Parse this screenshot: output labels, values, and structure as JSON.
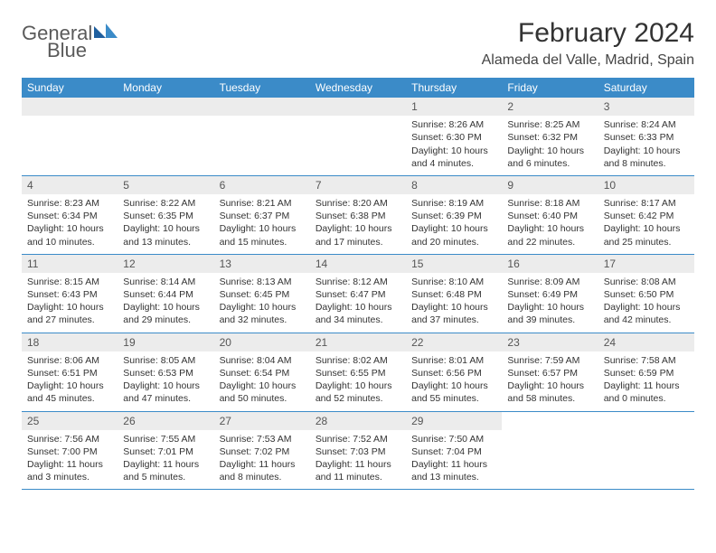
{
  "logo": {
    "text1": "General",
    "text2": "Blue"
  },
  "title": "February 2024",
  "location": "Alameda del Valle, Madrid, Spain",
  "colors": {
    "header_bg": "#3b8bc8",
    "header_text": "#ffffff",
    "daynum_bg": "#ececec",
    "border": "#3b8bc8",
    "logo_gray": "#5a5a5a",
    "logo_blue": "#2e7cc0",
    "text": "#333333"
  },
  "day_names": [
    "Sunday",
    "Monday",
    "Tuesday",
    "Wednesday",
    "Thursday",
    "Friday",
    "Saturday"
  ],
  "weeks": [
    [
      {
        "empty": true
      },
      {
        "empty": true
      },
      {
        "empty": true
      },
      {
        "empty": true
      },
      {
        "num": "1",
        "sunrise": "Sunrise: 8:26 AM",
        "sunset": "Sunset: 6:30 PM",
        "daylight": "Daylight: 10 hours and 4 minutes."
      },
      {
        "num": "2",
        "sunrise": "Sunrise: 8:25 AM",
        "sunset": "Sunset: 6:32 PM",
        "daylight": "Daylight: 10 hours and 6 minutes."
      },
      {
        "num": "3",
        "sunrise": "Sunrise: 8:24 AM",
        "sunset": "Sunset: 6:33 PM",
        "daylight": "Daylight: 10 hours and 8 minutes."
      }
    ],
    [
      {
        "num": "4",
        "sunrise": "Sunrise: 8:23 AM",
        "sunset": "Sunset: 6:34 PM",
        "daylight": "Daylight: 10 hours and 10 minutes."
      },
      {
        "num": "5",
        "sunrise": "Sunrise: 8:22 AM",
        "sunset": "Sunset: 6:35 PM",
        "daylight": "Daylight: 10 hours and 13 minutes."
      },
      {
        "num": "6",
        "sunrise": "Sunrise: 8:21 AM",
        "sunset": "Sunset: 6:37 PM",
        "daylight": "Daylight: 10 hours and 15 minutes."
      },
      {
        "num": "7",
        "sunrise": "Sunrise: 8:20 AM",
        "sunset": "Sunset: 6:38 PM",
        "daylight": "Daylight: 10 hours and 17 minutes."
      },
      {
        "num": "8",
        "sunrise": "Sunrise: 8:19 AM",
        "sunset": "Sunset: 6:39 PM",
        "daylight": "Daylight: 10 hours and 20 minutes."
      },
      {
        "num": "9",
        "sunrise": "Sunrise: 8:18 AM",
        "sunset": "Sunset: 6:40 PM",
        "daylight": "Daylight: 10 hours and 22 minutes."
      },
      {
        "num": "10",
        "sunrise": "Sunrise: 8:17 AM",
        "sunset": "Sunset: 6:42 PM",
        "daylight": "Daylight: 10 hours and 25 minutes."
      }
    ],
    [
      {
        "num": "11",
        "sunrise": "Sunrise: 8:15 AM",
        "sunset": "Sunset: 6:43 PM",
        "daylight": "Daylight: 10 hours and 27 minutes."
      },
      {
        "num": "12",
        "sunrise": "Sunrise: 8:14 AM",
        "sunset": "Sunset: 6:44 PM",
        "daylight": "Daylight: 10 hours and 29 minutes."
      },
      {
        "num": "13",
        "sunrise": "Sunrise: 8:13 AM",
        "sunset": "Sunset: 6:45 PM",
        "daylight": "Daylight: 10 hours and 32 minutes."
      },
      {
        "num": "14",
        "sunrise": "Sunrise: 8:12 AM",
        "sunset": "Sunset: 6:47 PM",
        "daylight": "Daylight: 10 hours and 34 minutes."
      },
      {
        "num": "15",
        "sunrise": "Sunrise: 8:10 AM",
        "sunset": "Sunset: 6:48 PM",
        "daylight": "Daylight: 10 hours and 37 minutes."
      },
      {
        "num": "16",
        "sunrise": "Sunrise: 8:09 AM",
        "sunset": "Sunset: 6:49 PM",
        "daylight": "Daylight: 10 hours and 39 minutes."
      },
      {
        "num": "17",
        "sunrise": "Sunrise: 8:08 AM",
        "sunset": "Sunset: 6:50 PM",
        "daylight": "Daylight: 10 hours and 42 minutes."
      }
    ],
    [
      {
        "num": "18",
        "sunrise": "Sunrise: 8:06 AM",
        "sunset": "Sunset: 6:51 PM",
        "daylight": "Daylight: 10 hours and 45 minutes."
      },
      {
        "num": "19",
        "sunrise": "Sunrise: 8:05 AM",
        "sunset": "Sunset: 6:53 PM",
        "daylight": "Daylight: 10 hours and 47 minutes."
      },
      {
        "num": "20",
        "sunrise": "Sunrise: 8:04 AM",
        "sunset": "Sunset: 6:54 PM",
        "daylight": "Daylight: 10 hours and 50 minutes."
      },
      {
        "num": "21",
        "sunrise": "Sunrise: 8:02 AM",
        "sunset": "Sunset: 6:55 PM",
        "daylight": "Daylight: 10 hours and 52 minutes."
      },
      {
        "num": "22",
        "sunrise": "Sunrise: 8:01 AM",
        "sunset": "Sunset: 6:56 PM",
        "daylight": "Daylight: 10 hours and 55 minutes."
      },
      {
        "num": "23",
        "sunrise": "Sunrise: 7:59 AM",
        "sunset": "Sunset: 6:57 PM",
        "daylight": "Daylight: 10 hours and 58 minutes."
      },
      {
        "num": "24",
        "sunrise": "Sunrise: 7:58 AM",
        "sunset": "Sunset: 6:59 PM",
        "daylight": "Daylight: 11 hours and 0 minutes."
      }
    ],
    [
      {
        "num": "25",
        "sunrise": "Sunrise: 7:56 AM",
        "sunset": "Sunset: 7:00 PM",
        "daylight": "Daylight: 11 hours and 3 minutes."
      },
      {
        "num": "26",
        "sunrise": "Sunrise: 7:55 AM",
        "sunset": "Sunset: 7:01 PM",
        "daylight": "Daylight: 11 hours and 5 minutes."
      },
      {
        "num": "27",
        "sunrise": "Sunrise: 7:53 AM",
        "sunset": "Sunset: 7:02 PM",
        "daylight": "Daylight: 11 hours and 8 minutes."
      },
      {
        "num": "28",
        "sunrise": "Sunrise: 7:52 AM",
        "sunset": "Sunset: 7:03 PM",
        "daylight": "Daylight: 11 hours and 11 minutes."
      },
      {
        "num": "29",
        "sunrise": "Sunrise: 7:50 AM",
        "sunset": "Sunset: 7:04 PM",
        "daylight": "Daylight: 11 hours and 13 minutes."
      },
      {
        "empty": true
      },
      {
        "empty": true
      }
    ]
  ]
}
